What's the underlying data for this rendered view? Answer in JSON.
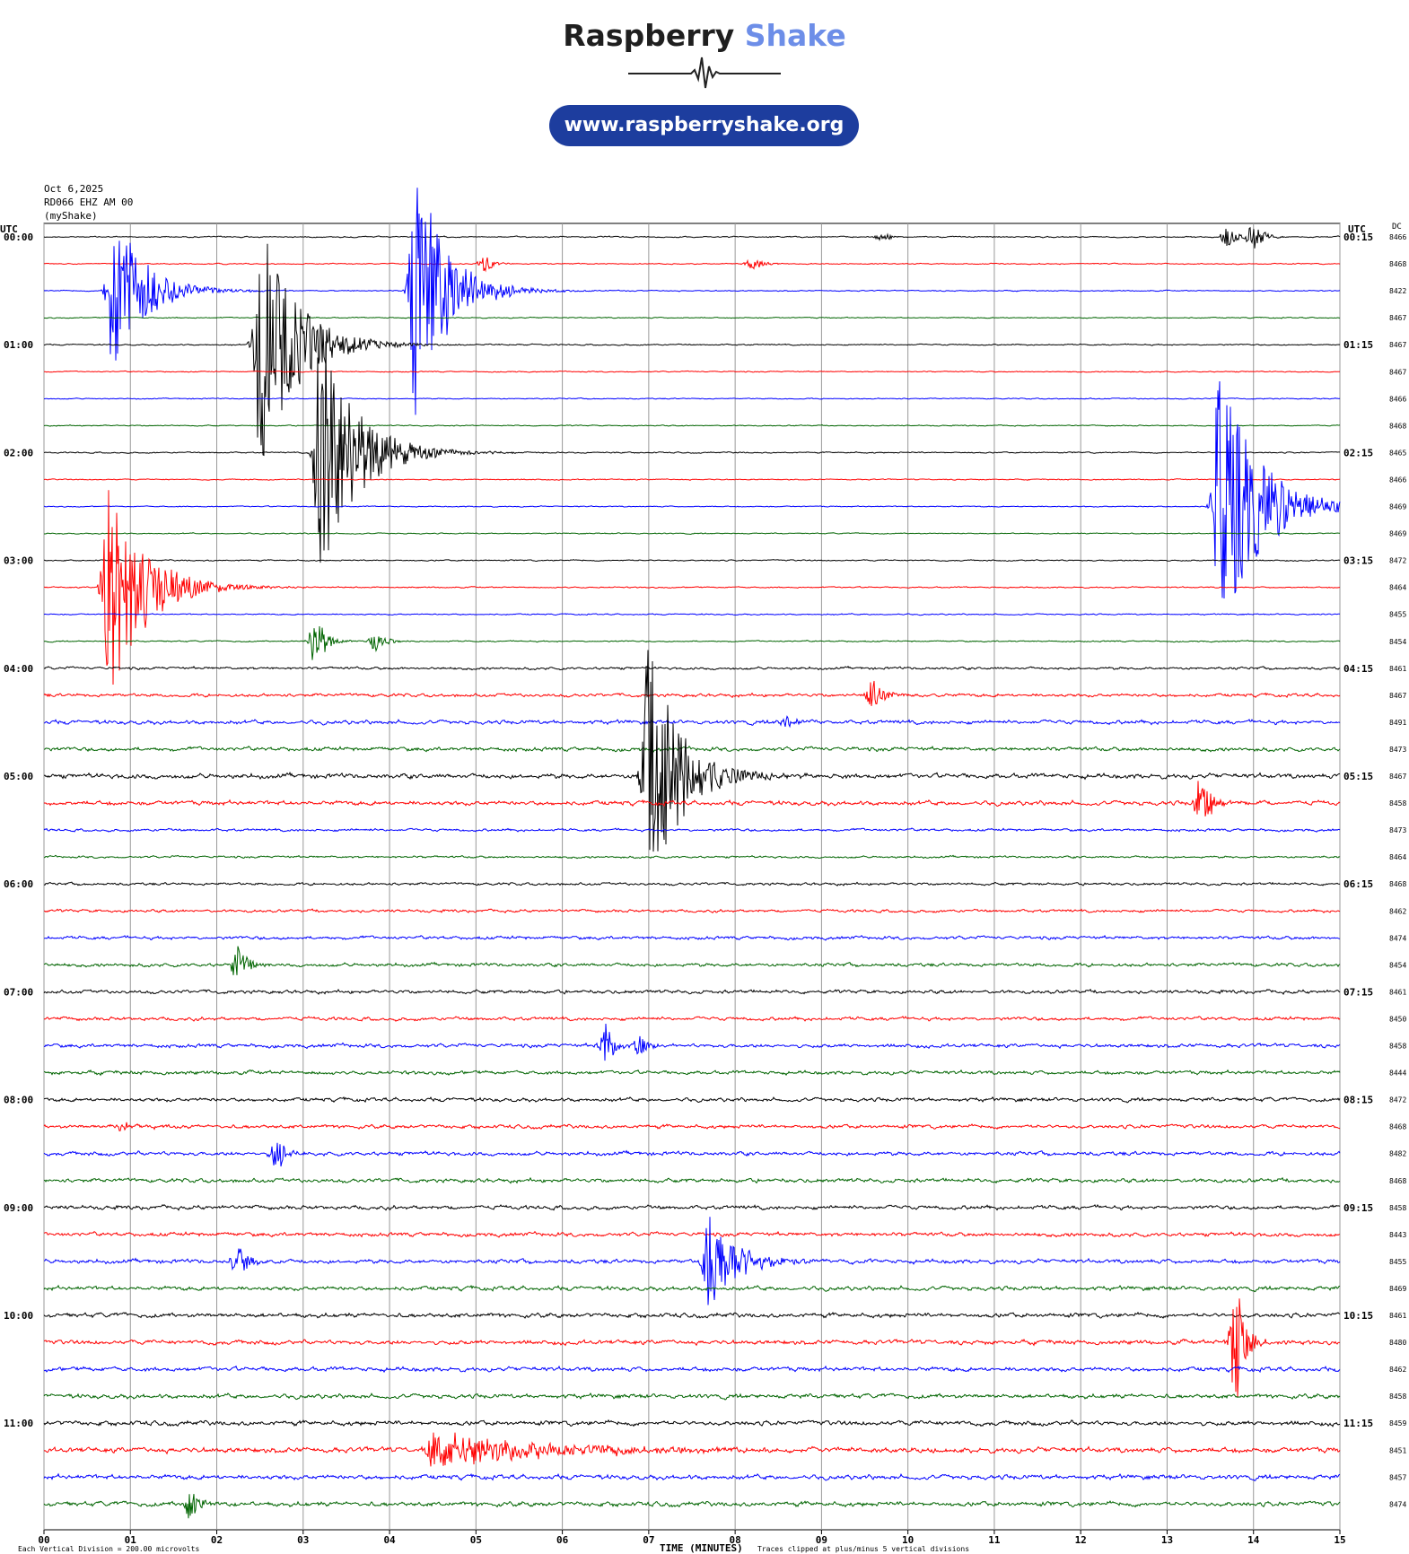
{
  "header": {
    "brand_part1": "Raspberry",
    "brand_part2": "Shake",
    "url": "www.raspberryshake.org"
  },
  "station": {
    "date": "Oct 6,2025",
    "channel": "RD066 EHZ AM 00",
    "source": "(myShake)"
  },
  "colors": {
    "cycle": [
      "#000000",
      "#ff0000",
      "#0000ff",
      "#006400"
    ],
    "brand_accent": "#6d8ee8",
    "pill": "#1d3d9e"
  },
  "chart_data": {
    "type": "line",
    "title": "",
    "xlabel": "TIME (MINUTES)",
    "left_axis_label": "UTC",
    "right_axis_label": "UTC",
    "dc_label": "DC",
    "x_ticks": [
      "00",
      "01",
      "02",
      "03",
      "04",
      "05",
      "06",
      "07",
      "08",
      "09",
      "10",
      "11",
      "12",
      "13",
      "14",
      "15"
    ],
    "xlim": [
      0,
      15
    ],
    "left_time_labels": [
      "00:00",
      "01:00",
      "02:00",
      "03:00",
      "04:00",
      "05:00",
      "06:00",
      "07:00",
      "08:00",
      "09:00",
      "10:00",
      "11:00"
    ],
    "right_time_labels": [
      "00:15",
      "01:15",
      "02:15",
      "03:15",
      "04:15",
      "05:15",
      "06:15",
      "07:15",
      "08:15",
      "09:15",
      "10:15",
      "11:15"
    ],
    "dc_values": [
      "8466",
      "8468",
      "8422",
      "8467",
      "8467",
      "8467",
      "8466",
      "8468",
      "8465",
      "8466",
      "8469",
      "8469",
      "8472",
      "8464",
      "8455",
      "8454",
      "8461",
      "8467",
      "8491",
      "8473",
      "8467",
      "8458",
      "8473",
      "8464",
      "8468",
      "8462",
      "8474",
      "8454",
      "8461",
      "8450",
      "8458",
      "8444",
      "8472",
      "8468",
      "8482",
      "8468",
      "8458",
      "8443",
      "8455",
      "8469",
      "8461",
      "8480",
      "8462",
      "8458",
      "8459",
      "8451",
      "8457",
      "8474"
    ],
    "noise_levels": [
      0.6,
      0.5,
      0.5,
      0.5,
      0.6,
      0.5,
      0.5,
      0.5,
      0.6,
      0.5,
      0.5,
      0.5,
      0.6,
      0.6,
      0.6,
      0.6,
      1.2,
      1.5,
      1.8,
      1.8,
      2.2,
      2.0,
      1.2,
      1.0,
      1.2,
      1.3,
      1.5,
      1.6,
      1.6,
      1.6,
      1.7,
      1.7,
      1.7,
      1.7,
      1.8,
      1.8,
      1.8,
      1.8,
      1.9,
      1.9,
      2.0,
      2.0,
      2.0,
      2.0,
      2.1,
      2.4,
      2.1,
      2.1
    ],
    "events": [
      {
        "row": 2,
        "minute": 0.8,
        "amp": 95,
        "dur": 1.0,
        "decay": 0.35
      },
      {
        "row": 4,
        "minute": 2.5,
        "amp": 140,
        "dur": 1.3,
        "decay": 0.4
      },
      {
        "row": 8,
        "minute": 3.2,
        "amp": 150,
        "dur": 1.4,
        "decay": 0.4
      },
      {
        "row": 2,
        "minute": 4.3,
        "amp": 145,
        "dur": 1.1,
        "decay": 0.35
      },
      {
        "row": 10,
        "minute": 13.6,
        "amp": 150,
        "dur": 1.3,
        "decay": 0.45
      },
      {
        "row": 13,
        "minute": 0.75,
        "amp": 130,
        "dur": 1.3,
        "decay": 0.4
      },
      {
        "row": 20,
        "minute": 7.0,
        "amp": 150,
        "dur": 0.9,
        "decay": 0.35
      },
      {
        "row": 38,
        "minute": 7.7,
        "amp": 60,
        "dur": 0.8,
        "decay": 0.3
      },
      {
        "row": 45,
        "minute": 4.5,
        "amp": 22,
        "dur": 2.5,
        "decay": 1.2
      },
      {
        "row": 0,
        "minute": 14.0,
        "amp": 18,
        "dur": 0.2,
        "decay": 0.1
      },
      {
        "row": 0,
        "minute": 13.7,
        "amp": 12,
        "dur": 0.15,
        "decay": 0.1
      },
      {
        "row": 0,
        "minute": 9.7,
        "amp": 6,
        "dur": 0.15,
        "decay": 0.1
      },
      {
        "row": 1,
        "minute": 5.1,
        "amp": 10,
        "dur": 0.2,
        "decay": 0.1
      },
      {
        "row": 1,
        "minute": 8.2,
        "amp": 8,
        "dur": 0.2,
        "decay": 0.1
      },
      {
        "row": 15,
        "minute": 3.15,
        "amp": 35,
        "dur": 0.3,
        "decay": 0.1
      },
      {
        "row": 15,
        "minute": 3.85,
        "amp": 14,
        "dur": 0.2,
        "decay": 0.1
      },
      {
        "row": 17,
        "minute": 9.6,
        "amp": 24,
        "dur": 0.3,
        "decay": 0.1
      },
      {
        "row": 18,
        "minute": 8.6,
        "amp": 8,
        "dur": 0.2,
        "decay": 0.1
      },
      {
        "row": 21,
        "minute": 13.4,
        "amp": 35,
        "dur": 0.3,
        "decay": 0.1
      },
      {
        "row": 27,
        "minute": 2.25,
        "amp": 22,
        "dur": 0.2,
        "decay": 0.1
      },
      {
        "row": 30,
        "minute": 6.5,
        "amp": 28,
        "dur": 0.2,
        "decay": 0.1
      },
      {
        "row": 30,
        "minute": 6.9,
        "amp": 12,
        "dur": 0.2,
        "decay": 0.1
      },
      {
        "row": 34,
        "minute": 2.7,
        "amp": 20,
        "dur": 0.2,
        "decay": 0.1
      },
      {
        "row": 38,
        "minute": 2.25,
        "amp": 20,
        "dur": 0.2,
        "decay": 0.1
      },
      {
        "row": 41,
        "minute": 13.8,
        "amp": 75,
        "dur": 0.3,
        "decay": 0.1
      },
      {
        "row": 47,
        "minute": 1.7,
        "amp": 20,
        "dur": 0.2,
        "decay": 0.1
      },
      {
        "row": 33,
        "minute": 0.9,
        "amp": 6,
        "dur": 0.3,
        "decay": 0.2
      }
    ],
    "clip_divisions": 5
  },
  "footer": {
    "scale_note": "Each Vertical Division =  200.00 microvolts",
    "clip_note": "Traces clipped at plus/minus 5 vertical divisions"
  }
}
